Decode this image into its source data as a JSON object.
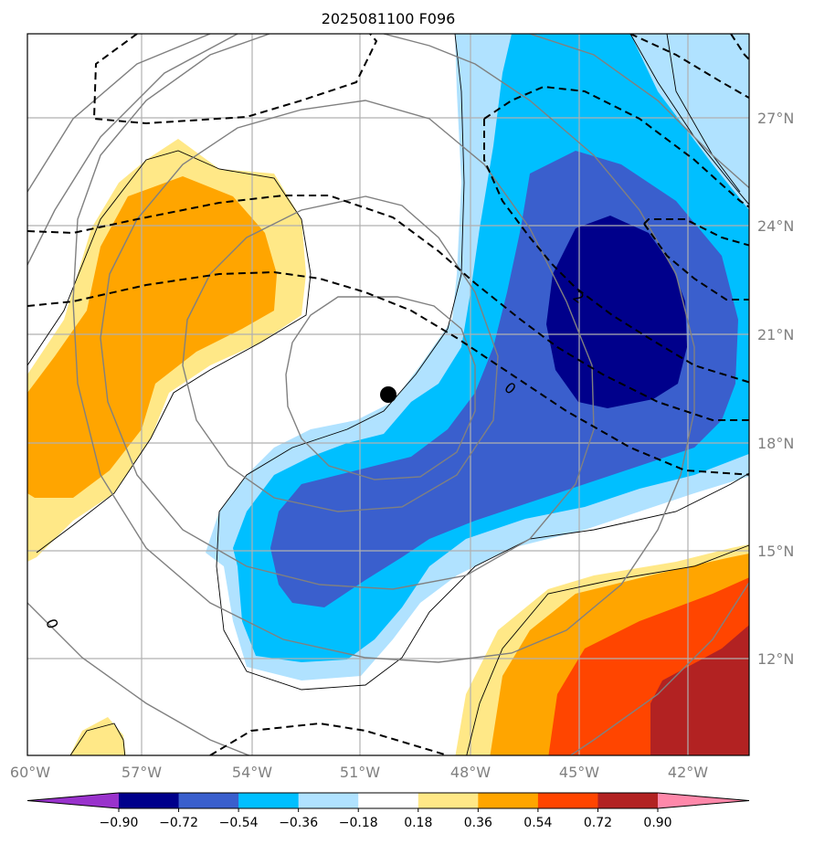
{
  "chart_data": {
    "type": "map-contour",
    "title": "2025081100 F096",
    "x_ticks": [
      "60°W",
      "57°W",
      "54°W",
      "51°W",
      "48°W",
      "45°W",
      "42°W"
    ],
    "y_ticks": [
      "27°N",
      "24°N",
      "21°N",
      "18°N",
      "15°N",
      "12°N"
    ],
    "x_range_deg_w": [
      60,
      40.5
    ],
    "y_range_deg_n": [
      9.5,
      29.5
    ],
    "colorbar": {
      "labels": [
        "−0.90",
        "−0.72",
        "−0.54",
        "−0.36",
        "−0.18",
        "0.18",
        "0.36",
        "0.54",
        "0.72",
        "0.90"
      ],
      "colors": [
        "#9932CC",
        "#00008B",
        "#3A5FCD",
        "#00BFFF",
        "#B0E2FF",
        "#FFFFFF",
        "#FFE887",
        "#FFA500",
        "#FF4500",
        "#B22222",
        "#FF88AA"
      ],
      "extend": "both"
    },
    "contour_labels": [
      "0",
      "0",
      "2"
    ],
    "center_marker": {
      "lon_w": 50.2,
      "lat_n": 19.3
    },
    "grid": true
  }
}
